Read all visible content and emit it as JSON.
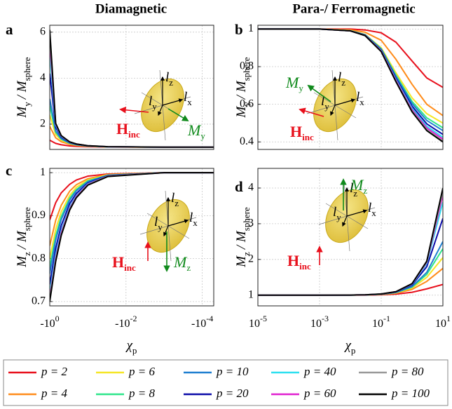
{
  "column_titles": [
    "Diamagnetic",
    "Para-/ Ferromagnetic"
  ],
  "legend": {
    "position": "bottom",
    "items": [
      {
        "name": "p = 2",
        "color": "#e8101c"
      },
      {
        "name": "p = 4",
        "color": "#ff8c1a"
      },
      {
        "name": "p = 6",
        "color": "#f5e627"
      },
      {
        "name": "p = 8",
        "color": "#2ee68a"
      },
      {
        "name": "p = 10",
        "color": "#1f7fd0"
      },
      {
        "name": "p = 20",
        "color": "#0a0aa8"
      },
      {
        "name": "p = 40",
        "color": "#2de0f0"
      },
      {
        "name": "p = 60",
        "color": "#e020d0"
      },
      {
        "name": "p = 80",
        "color": "#999999"
      },
      {
        "name": "p = 100",
        "color": "#000000"
      }
    ]
  },
  "chart_data": [
    {
      "type": "line",
      "label": "a",
      "xscale": "log",
      "grid": true,
      "ylabel": [
        {
          "text": "M",
          "sub": "y"
        },
        {
          "text": "/ M",
          "sub": "sphere"
        }
      ],
      "xlim": [
        -1,
        -5e-05
      ],
      "xticks": [
        -1,
        -0.01,
        -0.0001
      ],
      "ylim": [
        0.9,
        6.3
      ],
      "yticks": [
        2,
        4,
        6
      ],
      "x": [
        -1,
        -0.7,
        -0.5,
        -0.3,
        -0.2,
        -0.1,
        -0.03,
        -0.001,
        -5e-05
      ],
      "series": [
        {
          "values": [
            1.3,
            1.163,
            1.102,
            1.054,
            1.034,
            1.016,
            1.005,
            1,
            1
          ]
        },
        {
          "values": [
            1.9,
            1.405,
            1.234,
            1.118,
            1.073,
            1.034,
            1.01,
            1,
            1
          ]
        },
        {
          "values": [
            2.4,
            1.55,
            1.304,
            1.149,
            1.091,
            1.042,
            1.012,
            1,
            1
          ]
        },
        {
          "values": [
            2.8,
            1.643,
            1.346,
            1.167,
            1.101,
            1.046,
            1.013,
            1,
            1
          ]
        },
        {
          "values": [
            3.1,
            1.702,
            1.372,
            1.177,
            1.107,
            1.049,
            1.014,
            1,
            1
          ]
        },
        {
          "values": [
            4.2,
            1.864,
            1.438,
            1.204,
            1.122,
            1.055,
            1.016,
            1,
            1
          ]
        },
        {
          "values": [
            5.1,
            1.957,
            1.474,
            1.217,
            1.13,
            1.059,
            1.017,
            1,
            1
          ]
        },
        {
          "values": [
            5.6,
            2.0,
            1.489,
            1.223,
            1.133,
            1.06,
            1.017,
            1,
            1
          ]
        },
        {
          "values": [
            5.9,
            2.022,
            1.497,
            1.226,
            1.135,
            1.061,
            1.017,
            1,
            1
          ]
        },
        {
          "values": [
            6.1,
            2.037,
            1.503,
            1.228,
            1.136,
            1.061,
            1.017,
            1,
            1
          ]
        }
      ],
      "inset": {
        "axes": [
          {
            "text": "l",
            "sub": "z"
          },
          {
            "text": "l",
            "sub": "y"
          },
          {
            "text": "l",
            "sub": "x"
          }
        ],
        "field": {
          "text": "H",
          "sub": "inc"
        },
        "magnetization": {
          "text": "M",
          "sub": "y"
        }
      }
    },
    {
      "type": "line",
      "label": "b",
      "xscale": "log",
      "grid": true,
      "ylabel": [
        {
          "text": "M",
          "sub": "y"
        },
        {
          "text": "/ M",
          "sub": "sphere"
        }
      ],
      "xlim": [
        1e-05,
        10
      ],
      "xticks": [
        1e-05,
        0.001,
        0.1,
        10
      ],
      "ylim": [
        0.36,
        1.02
      ],
      "yticks": [
        0.4,
        0.6,
        0.8,
        1
      ],
      "x": [
        1e-05,
        0.001,
        0.01,
        0.03,
        0.1,
        0.3,
        1,
        3,
        10
      ],
      "series": [
        {
          "values": [
            1,
            1,
            1,
            0.995,
            0.98,
            0.93,
            0.83,
            0.74,
            0.69
          ]
        },
        {
          "values": [
            1,
            1,
            0.996,
            0.983,
            0.94,
            0.839,
            0.706,
            0.6,
            0.54
          ]
        },
        {
          "values": [
            1,
            1,
            0.992,
            0.971,
            0.9,
            0.767,
            0.634,
            0.55,
            0.5
          ]
        },
        {
          "values": [
            1,
            1,
            0.991,
            0.97,
            0.895,
            0.755,
            0.615,
            0.528,
            0.475
          ]
        },
        {
          "values": [
            1,
            1,
            0.991,
            0.969,
            0.892,
            0.748,
            0.604,
            0.514,
            0.46
          ]
        },
        {
          "values": [
            1,
            1,
            0.99,
            0.968,
            0.888,
            0.738,
            0.59,
            0.496,
            0.44
          ]
        },
        {
          "values": [
            1,
            1,
            0.99,
            0.967,
            0.885,
            0.731,
            0.579,
            0.483,
            0.425
          ]
        },
        {
          "values": [
            1,
            1,
            0.99,
            0.966,
            0.883,
            0.727,
            0.571,
            0.474,
            0.415
          ]
        },
        {
          "values": [
            1,
            1,
            0.99,
            0.965,
            0.881,
            0.722,
            0.564,
            0.465,
            0.405
          ]
        },
        {
          "values": [
            1,
            1,
            0.99,
            0.965,
            0.88,
            0.72,
            0.56,
            0.46,
            0.4
          ]
        }
      ],
      "inset": {
        "axes": [
          {
            "text": "l",
            "sub": "z"
          },
          {
            "text": "l",
            "sub": "y"
          },
          {
            "text": "l",
            "sub": "x"
          }
        ],
        "field": {
          "text": "H",
          "sub": "inc"
        },
        "magnetization": {
          "text": "M",
          "sub": "y"
        }
      }
    },
    {
      "type": "line",
      "label": "c",
      "xscale": "log",
      "grid": true,
      "ylabel": [
        {
          "text": "M",
          "sub": "z"
        },
        {
          "text": "/ M",
          "sub": "sphere"
        }
      ],
      "xlabel": [
        {
          "text": "χ",
          "sub": "p"
        }
      ],
      "xlim": [
        -1,
        -5e-05
      ],
      "xticks": [
        {
          "value": -1,
          "label": "-10",
          "exponent": "0"
        },
        {
          "value": -0.01,
          "label": "-10",
          "exponent": "-2"
        },
        {
          "value": -0.0001,
          "label": "-10",
          "exponent": "-4"
        }
      ],
      "ylim": [
        0.69,
        1.01
      ],
      "yticks": [
        0.7,
        0.8,
        0.9,
        1
      ],
      "x": [
        -1,
        -0.7,
        -0.5,
        -0.3,
        -0.2,
        -0.1,
        -0.03,
        -0.001,
        -5e-05
      ],
      "series": [
        {
          "values": [
            0.89,
            0.93,
            0.953,
            0.973,
            0.983,
            0.992,
            0.997,
            1,
            1
          ]
        },
        {
          "values": [
            0.83,
            0.889,
            0.924,
            0.957,
            0.972,
            0.986,
            0.996,
            1,
            1
          ]
        },
        {
          "values": [
            0.8,
            0.868,
            0.909,
            0.947,
            0.966,
            0.983,
            0.995,
            1,
            1
          ]
        },
        {
          "values": [
            0.78,
            0.853,
            0.898,
            0.941,
            0.961,
            0.981,
            0.994,
            1,
            1
          ]
        },
        {
          "values": [
            0.765,
            0.843,
            0.891,
            0.936,
            0.958,
            0.979,
            0.994,
            1,
            1
          ]
        },
        {
          "values": [
            0.74,
            0.824,
            0.877,
            0.928,
            0.952,
            0.976,
            0.993,
            1,
            1
          ]
        },
        {
          "values": [
            0.72,
            0.809,
            0.865,
            0.92,
            0.947,
            0.974,
            0.992,
            1,
            1
          ]
        },
        {
          "values": [
            0.71,
            0.801,
            0.86,
            0.917,
            0.945,
            0.973,
            0.992,
            1,
            1
          ]
        },
        {
          "values": [
            0.705,
            0.797,
            0.856,
            0.915,
            0.943,
            0.972,
            0.992,
            1,
            1
          ]
        },
        {
          "values": [
            0.7,
            0.793,
            0.854,
            0.913,
            0.942,
            0.971,
            0.991,
            1,
            1
          ]
        }
      ],
      "inset": {
        "axes": [
          {
            "text": "l",
            "sub": "z"
          },
          {
            "text": "l",
            "sub": "y"
          },
          {
            "text": "l",
            "sub": "x"
          }
        ],
        "field": {
          "text": "H",
          "sub": "inc"
        },
        "magnetization": {
          "text": "M",
          "sub": "z"
        }
      }
    },
    {
      "type": "line",
      "label": "d",
      "xscale": "log",
      "grid": true,
      "ylabel": [
        {
          "text": "M",
          "sub": "z"
        },
        {
          "text": "/ M",
          "sub": "sphere"
        }
      ],
      "xlabel": [
        {
          "text": "χ",
          "sub": "p"
        }
      ],
      "xlim": [
        1e-05,
        10
      ],
      "xticks": [
        {
          "value": 1e-05,
          "label": "10",
          "exponent": "-5"
        },
        {
          "value": 0.001,
          "label": "10",
          "exponent": "-3"
        },
        {
          "value": 0.1,
          "label": "10",
          "exponent": "-1"
        },
        {
          "value": 10,
          "label": "10",
          "exponent": "1"
        }
      ],
      "ylim": [
        0.7,
        4.55
      ],
      "yticks": [
        1,
        2,
        3,
        4
      ],
      "x": [
        1e-05,
        0.001,
        0.01,
        0.03,
        0.1,
        0.3,
        1,
        3,
        10
      ],
      "series": [
        {
          "values": [
            1,
            1,
            1.001,
            1.003,
            1.01,
            1.028,
            1.081,
            1.176,
            1.3
          ]
        },
        {
          "values": [
            1,
            1,
            1.002,
            1.006,
            1.018,
            1.053,
            1.162,
            1.386,
            1.75
          ]
        },
        {
          "values": [
            1,
            1,
            1.002,
            1.007,
            1.022,
            1.064,
            1.2,
            1.499,
            2.05
          ]
        },
        {
          "values": [
            1,
            1,
            1.002,
            1.007,
            1.024,
            1.072,
            1.225,
            1.581,
            2.3
          ]
        },
        {
          "values": [
            1,
            1,
            1.003,
            1.008,
            1.026,
            1.076,
            1.242,
            1.639,
            2.5
          ]
        },
        {
          "values": [
            1,
            1,
            1.003,
            1.009,
            1.029,
            1.088,
            1.285,
            1.797,
            3.15
          ]
        },
        {
          "values": [
            1,
            1,
            1.003,
            1.009,
            1.031,
            1.093,
            1.307,
            1.885,
            3.6
          ]
        },
        {
          "values": [
            1,
            1,
            1.003,
            1.01,
            1.032,
            1.095,
            1.315,
            1.919,
            3.8
          ]
        },
        {
          "values": [
            1,
            1,
            1.003,
            1.01,
            1.032,
            1.096,
            1.319,
            1.936,
            3.9
          ]
        },
        {
          "values": [
            1,
            1,
            1.003,
            1.01,
            1.033,
            1.097,
            1.322,
            1.951,
            4
          ]
        }
      ],
      "inset": {
        "axes": [
          {
            "text": "l",
            "sub": "z"
          },
          {
            "text": "l",
            "sub": "y"
          },
          {
            "text": "l",
            "sub": "x"
          }
        ],
        "field": {
          "text": "H",
          "sub": "inc"
        },
        "magnetization": {
          "text": "M",
          "sub": "z"
        }
      }
    }
  ]
}
